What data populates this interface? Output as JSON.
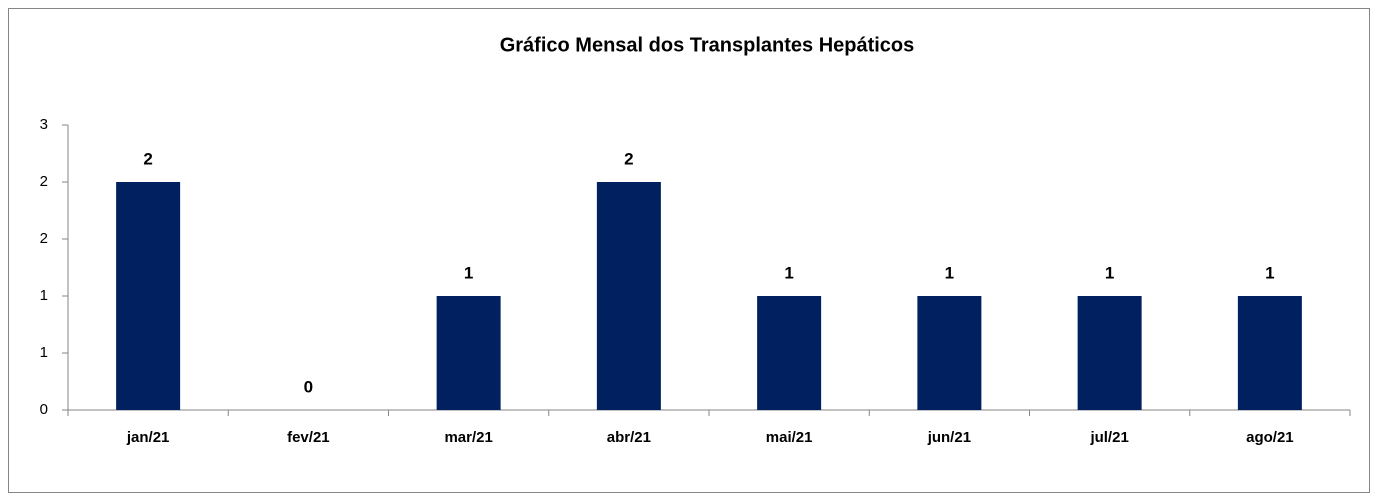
{
  "chart_data": {
    "type": "bar",
    "title": "Gráfico Mensal dos Transplantes Hepáticos",
    "categories": [
      "jan/21",
      "fev/21",
      "mar/21",
      "abr/21",
      "mai/21",
      "jun/21",
      "jul/21",
      "ago/21"
    ],
    "values": [
      2,
      0,
      1,
      2,
      1,
      1,
      1,
      1
    ],
    "color": "#002060",
    "ylim": [
      0,
      2.5
    ],
    "yticks": [
      0,
      {
        "value": 0.5,
        "label": "1"
      },
      1,
      {
        "value": 1.5,
        "label": "2"
      },
      2,
      {
        "value": 2.5,
        "label": "3"
      }
    ],
    "grid": false
  }
}
